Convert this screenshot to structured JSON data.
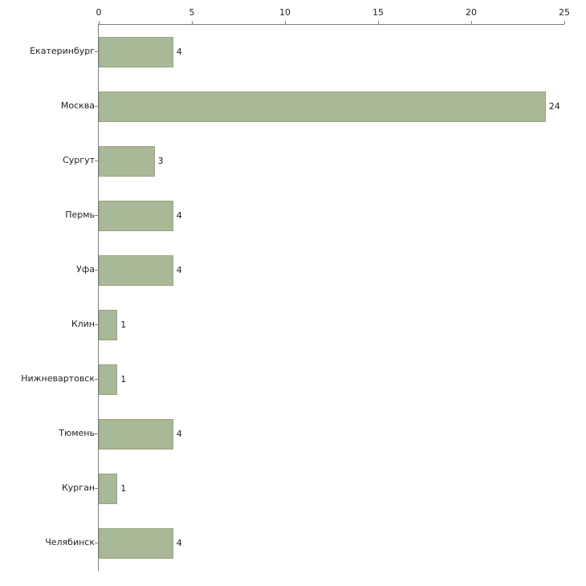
{
  "chart_data": {
    "type": "bar",
    "orientation": "horizontal",
    "title": "",
    "xlabel": "",
    "ylabel": "",
    "categories": [
      "Екатеринбург",
      "Москва",
      "Сургут",
      "Пермь",
      "Уфа",
      "Клин",
      "Нижневартовск",
      "Тюмень",
      "Курган",
      "Челябинск"
    ],
    "values": [
      4,
      24,
      3,
      4,
      4,
      1,
      1,
      4,
      1,
      4
    ],
    "x_ticks": [
      0,
      5,
      10,
      15,
      20,
      25
    ],
    "xlim": [
      0,
      25
    ],
    "legend": "none",
    "grid": "off",
    "bar_color": "#a9b896",
    "bar_border_color": "#95a37e",
    "axis_color": "#7f7f7f",
    "text_color": "#222222",
    "background_color": "#ffffff"
  }
}
